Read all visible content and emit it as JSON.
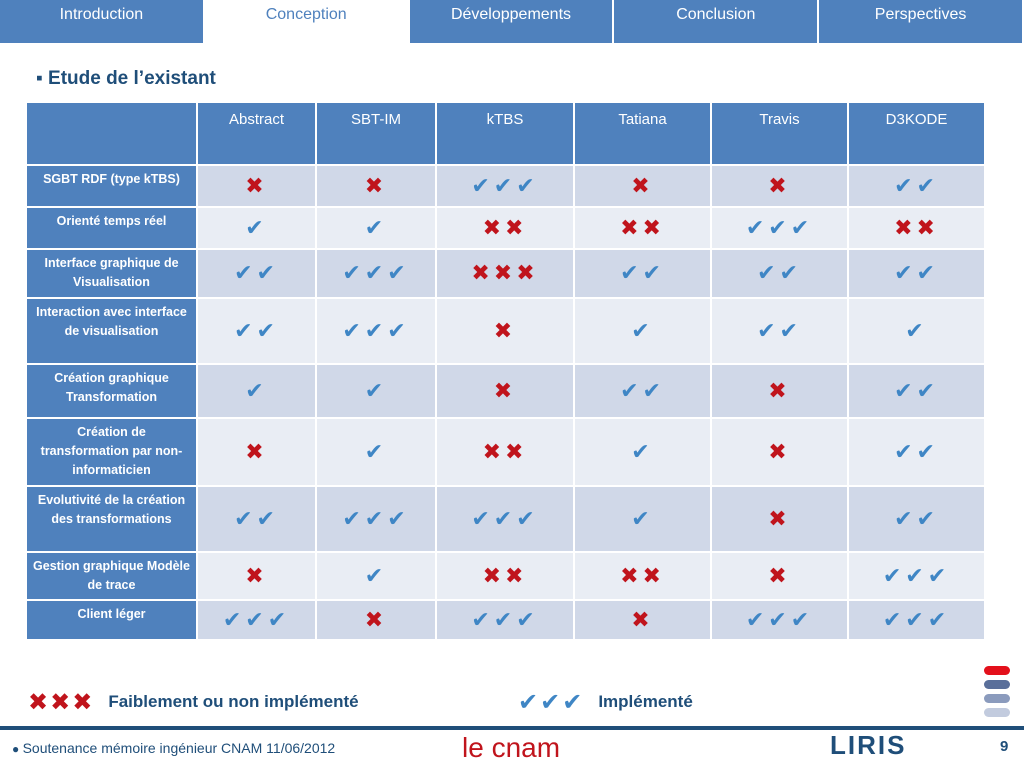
{
  "nav": {
    "tabs": [
      "Introduction",
      "Conception",
      "Développements",
      "Conclusion",
      "Perspectives"
    ],
    "active": 1
  },
  "section_title": "Etude de l’existant",
  "table": {
    "header": [
      "Abstract",
      "SBT-IM",
      "kTBS",
      "Tatiana",
      "Travis",
      "D3KODE"
    ],
    "rows": [
      {
        "label": "SGBT RDF (type kTBS)",
        "cells": [
          "✖",
          "✖",
          "✔✔✔",
          "✖",
          "✖",
          "✔✔"
        ]
      },
      {
        "label": "Orienté temps réel",
        "cells": [
          "✔",
          "✔",
          "✖✖",
          "✖✖",
          "✔✔✔",
          "✖✖"
        ]
      },
      {
        "label": "Interface graphique de Visualisation",
        "cells": [
          "✔✔",
          "✔✔✔",
          "✖✖✖",
          "✔✔",
          "✔✔",
          "✔✔"
        ]
      },
      {
        "label": "Interaction avec interface de visualisation",
        "cells": [
          "✔✔",
          "✔✔✔",
          "✖",
          "✔",
          "✔✔",
          "✔"
        ]
      },
      {
        "label": "Création graphique Transformation",
        "cells": [
          "✔",
          "✔",
          "✖",
          "✔✔",
          "✖",
          "✔✔"
        ]
      },
      {
        "label": "Création de transformation par non-informaticien",
        "cells": [
          "✖",
          "✔",
          "✖✖",
          "✔",
          "✖",
          "✔✔"
        ]
      },
      {
        "label": "Evolutivité de la création des transformations",
        "cells": [
          "✔✔",
          "✔✔✔",
          "✔✔✔",
          "✔",
          "✖",
          "✔✔"
        ]
      },
      {
        "label": "Gestion graphique Modèle de trace",
        "cells": [
          "✖",
          "✔",
          "✖✖",
          "✖✖",
          "✖",
          "✔✔✔"
        ]
      },
      {
        "label": "Client léger",
        "cells": [
          "✔✔✔",
          "✖",
          "✔✔✔",
          "✖",
          "✔✔✔",
          "✔✔✔"
        ]
      }
    ]
  },
  "legend": [
    {
      "symbols": "✖✖✖",
      "label": "Faiblement ou non implémenté"
    },
    {
      "symbols": "✔✔✔",
      "label": "Implémenté"
    }
  ],
  "footer": {
    "text": "Soutenance mémoire ingénieur CNAM 11/06/2012",
    "logo_left": "le cnam",
    "logo_right": "LIRIS",
    "page": "9"
  }
}
